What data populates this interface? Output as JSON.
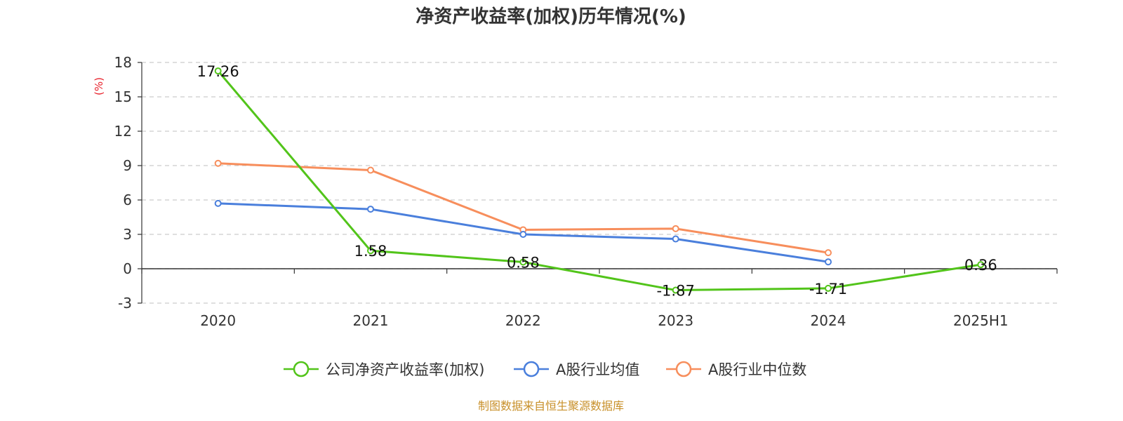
{
  "chart_data": {
    "type": "line",
    "title": "净资产收益率(加权)历年情况(%)",
    "ylabel": "(%)",
    "xlabel": "",
    "categories": [
      "2020",
      "2021",
      "2022",
      "2023",
      "2024",
      "2025H1"
    ],
    "ylim": [
      -3,
      18
    ],
    "yticks": [
      18,
      15,
      12,
      9,
      6,
      3,
      0,
      -3
    ],
    "grid": true,
    "legend_position": "bottom-center",
    "series": [
      {
        "name": "公司净资产收益率(加权)",
        "color": "#52c41a",
        "values": [
          17.26,
          1.58,
          0.58,
          -1.87,
          -1.71,
          0.36
        ],
        "labels": [
          "17.26",
          "1.58",
          "0.58",
          "-1.87",
          "-1.71",
          "0.36"
        ]
      },
      {
        "name": "A股行业均值",
        "color": "#4a7fdc",
        "values": [
          5.7,
          5.2,
          3.0,
          2.6,
          0.6,
          null
        ]
      },
      {
        "name": "A股行业中位数",
        "color": "#f78e5c",
        "values": [
          9.2,
          8.6,
          3.4,
          3.5,
          1.4,
          null
        ]
      }
    ],
    "unit_color": "#e8212b",
    "source": "制图数据来自恒生聚源数据库",
    "source_color": "#c8902a"
  }
}
